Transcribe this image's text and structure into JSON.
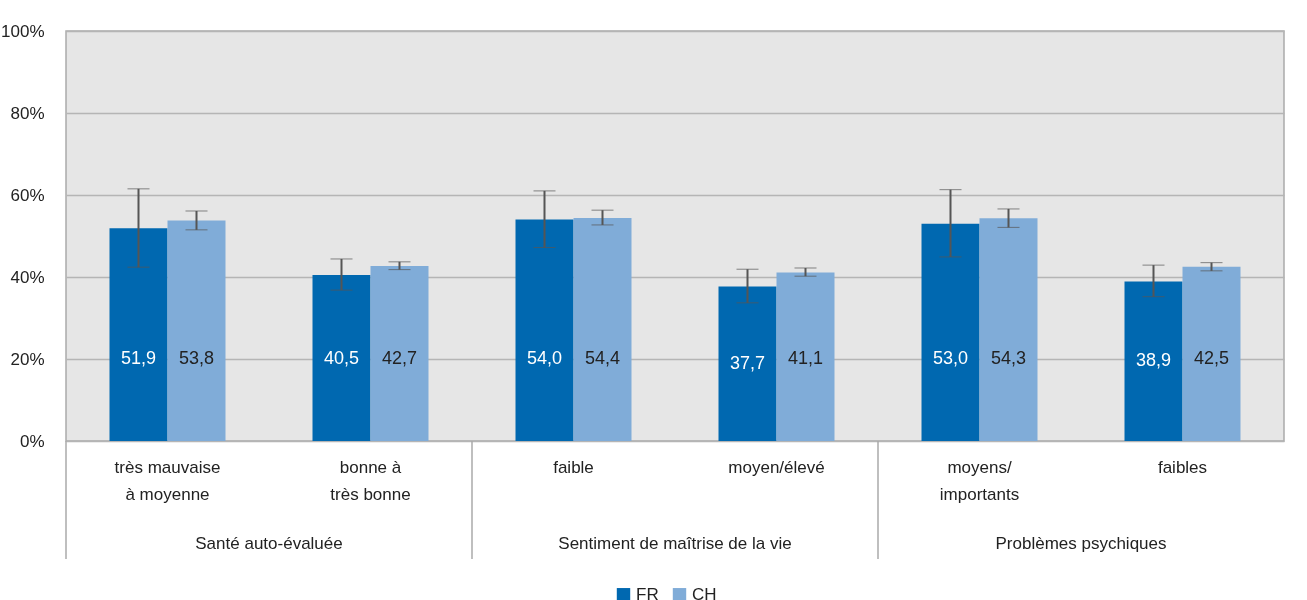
{
  "chart_data": {
    "type": "bar",
    "categories": [
      "très mauvaise\nà moyenne",
      "bonne à\ntrès bonne",
      "faible",
      "moyen/élevé",
      "moyens/\nimportants",
      "faibles"
    ],
    "annotations": [
      "Santé auto-évaluée",
      "Sentiment de maîtrise de la vie",
      "Problèmes psychiques"
    ],
    "series": [
      {
        "name": "FR",
        "color": "#0068b0",
        "values": [
          51.9,
          40.5,
          54.0,
          37.7,
          53.0,
          38.9
        ],
        "value_labels": [
          "51,9",
          "40,5",
          "54,0",
          "37,7",
          "53,0",
          "38,9"
        ],
        "errors": [
          [
            42.4,
            61.5
          ],
          [
            36.8,
            44.4
          ],
          [
            47.2,
            61.0
          ],
          [
            33.7,
            41.9
          ],
          [
            44.9,
            61.3
          ],
          [
            35.2,
            42.9
          ]
        ]
      },
      {
        "name": "CH",
        "color": "#80acd8",
        "values": [
          53.8,
          42.7,
          54.4,
          41.1,
          54.3,
          42.5
        ],
        "value_labels": [
          "53,8",
          "42,7",
          "54,4",
          "41,1",
          "54,3",
          "42,5"
        ],
        "errors": [
          [
            51.5,
            56.1
          ],
          [
            41.8,
            43.7
          ],
          [
            52.7,
            56.3
          ],
          [
            40.2,
            42.2
          ],
          [
            52.1,
            56.6
          ],
          [
            41.5,
            43.5
          ]
        ]
      }
    ],
    "ylim": [
      0,
      100
    ],
    "yticks": [
      {
        "value": 0,
        "label": "0%"
      },
      {
        "value": 20,
        "label": "20%"
      },
      {
        "value": 40,
        "label": "40%"
      },
      {
        "value": 60,
        "label": "60%"
      },
      {
        "value": 80,
        "label": "80%"
      },
      {
        "value": 100,
        "label": "100%"
      }
    ],
    "grid": "y",
    "legend": "bottom"
  }
}
